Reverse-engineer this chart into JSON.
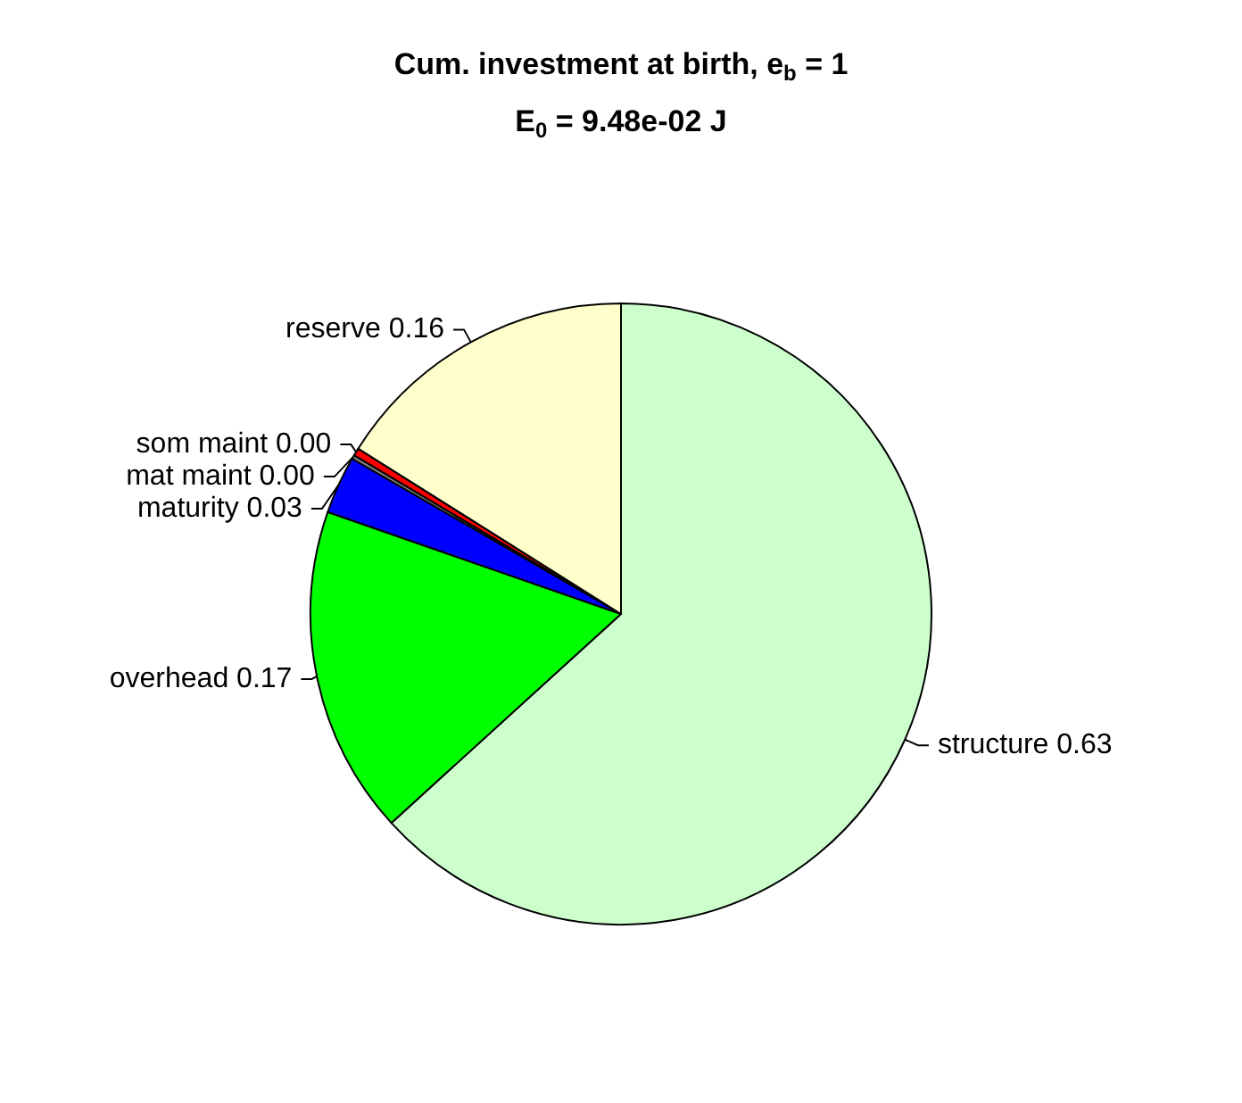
{
  "chart_data": {
    "type": "pie",
    "title": "Cum. investment at birth, e$_{b}$ = 1",
    "subtitle": "E$_{0}$ = 9.48e-02 J",
    "categories": [
      "structure",
      "overhead",
      "maturity",
      "mat maint",
      "som maint",
      "reserve"
    ],
    "values": [
      0.63,
      0.17,
      0.03,
      0.002,
      0.004,
      0.16
    ],
    "value_labels": [
      "0.63",
      "0.17",
      "0.03",
      "0.00",
      "0.00",
      "0.16"
    ],
    "colors": [
      "#ccffcc",
      "#00ff00",
      "#0000ff",
      "#808080",
      "#ff0000",
      "#ffffcc"
    ],
    "legend": false
  }
}
